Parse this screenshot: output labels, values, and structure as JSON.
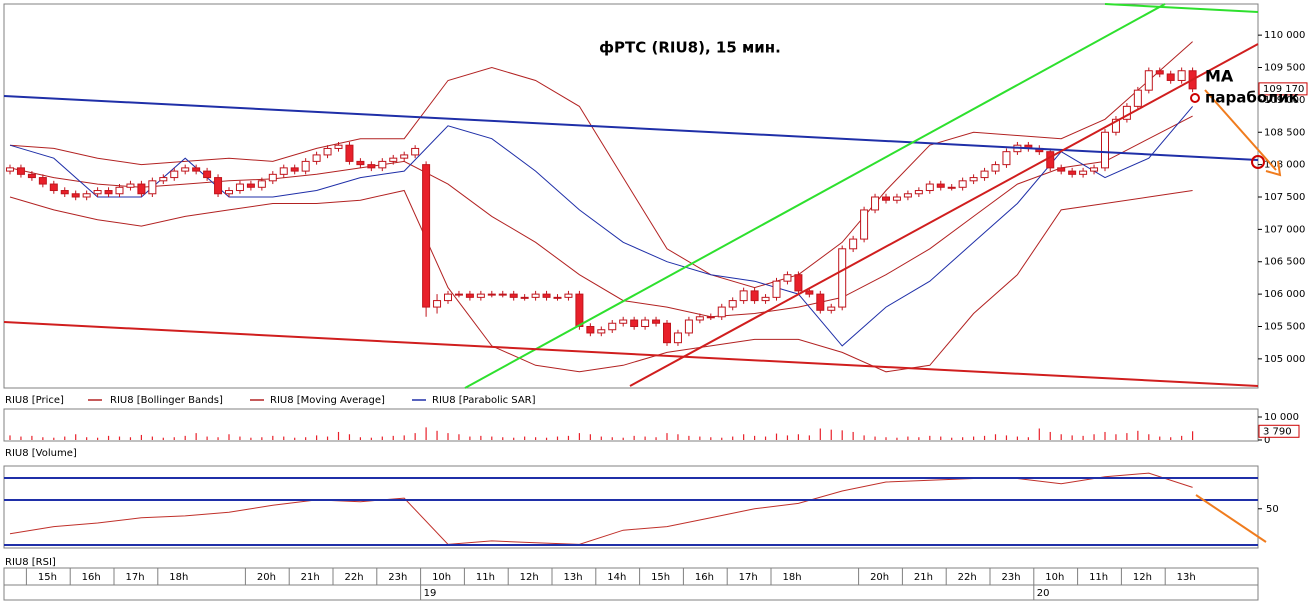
{
  "chart_data": {
    "type": "candlestick",
    "title": "фРТС (RIU8), 15 мин.",
    "price_name": "RIU8 [Price]",
    "categories": [
      null,
      null,
      "15h",
      null,
      null,
      null,
      "16h",
      null,
      null,
      null,
      "17h",
      null,
      null,
      null,
      "18h",
      null,
      null,
      null,
      null,
      null,
      null,
      null,
      "20h",
      null,
      null,
      null,
      "21h",
      null,
      null,
      null,
      "22h",
      null,
      null,
      null,
      "23h",
      null,
      null,
      null,
      "10h",
      null,
      null,
      null,
      "11h",
      null,
      null,
      null,
      "12h",
      null,
      null,
      null,
      "13h",
      null,
      null,
      null,
      "14h",
      null,
      null,
      null,
      "15h",
      null,
      null,
      null,
      "16h",
      null,
      null,
      null,
      "17h",
      null,
      null,
      null,
      "18h",
      null,
      null,
      null,
      null,
      null,
      null,
      null,
      "20h",
      null,
      null,
      null,
      "21h",
      null,
      null,
      null,
      "22h",
      null,
      null,
      null,
      "23h",
      null,
      null,
      null,
      "10h",
      null,
      null,
      null,
      "11h",
      null,
      null,
      null,
      "12h",
      null,
      null,
      null,
      "13h",
      null,
      null
    ],
    "day_ticks": [
      {
        "value": 38,
        "label": "19"
      },
      {
        "value": 94,
        "label": "20"
      }
    ],
    "candles": [
      [
        107900,
        108000,
        107850,
        107950
      ],
      [
        107950,
        108000,
        107800,
        107850
      ],
      [
        107850,
        107900,
        107750,
        107800
      ],
      [
        107800,
        107850,
        107650,
        107700
      ],
      [
        107700,
        107750,
        107550,
        107600
      ],
      [
        107600,
        107650,
        107500,
        107550
      ],
      [
        107550,
        107600,
        107450,
        107500
      ],
      [
        107500,
        107600,
        107450,
        107550
      ],
      [
        107550,
        107650,
        107500,
        107600
      ],
      [
        107600,
        107650,
        107500,
        107550
      ],
      [
        107550,
        107700,
        107500,
        107650
      ],
      [
        107650,
        107750,
        107600,
        107700
      ],
      [
        107700,
        107750,
        107500,
        107550
      ],
      [
        107550,
        107800,
        107500,
        107750
      ],
      [
        107750,
        107850,
        107700,
        107800
      ],
      [
        107800,
        107950,
        107750,
        107900
      ],
      [
        107900,
        108000,
        107850,
        107950
      ],
      [
        107950,
        108000,
        107850,
        107900
      ],
      [
        107900,
        107950,
        107750,
        107800
      ],
      [
        107800,
        107850,
        107500,
        107550
      ],
      [
        107550,
        107650,
        107500,
        107600
      ],
      [
        107600,
        107750,
        107550,
        107700
      ],
      [
        107700,
        107750,
        107600,
        107650
      ],
      [
        107650,
        107800,
        107600,
        107750
      ],
      [
        107750,
        107900,
        107700,
        107850
      ],
      [
        107850,
        108000,
        107800,
        107950
      ],
      [
        107950,
        108000,
        107850,
        107900
      ],
      [
        107900,
        108100,
        107850,
        108050
      ],
      [
        108050,
        108200,
        108000,
        108150
      ],
      [
        108150,
        108300,
        108100,
        108250
      ],
      [
        108250,
        108350,
        108200,
        108300
      ],
      [
        108300,
        108350,
        108000,
        108050
      ],
      [
        108050,
        108100,
        107950,
        108000
      ],
      [
        108000,
        108050,
        107900,
        107950
      ],
      [
        107950,
        108100,
        107900,
        108050
      ],
      [
        108050,
        108150,
        108000,
        108100
      ],
      [
        108100,
        108200,
        108050,
        108150
      ],
      [
        108150,
        108300,
        108100,
        108250
      ],
      [
        108000,
        108050,
        105650,
        105800
      ],
      [
        105800,
        106000,
        105700,
        105900
      ],
      [
        105900,
        106050,
        105850,
        106000
      ],
      [
        106000,
        106050,
        105950,
        106000
      ],
      [
        106000,
        106050,
        105900,
        105950
      ],
      [
        105950,
        106050,
        105900,
        106000
      ],
      [
        106000,
        106050,
        105950,
        106000
      ],
      [
        106000,
        106050,
        105950,
        106000
      ],
      [
        106000,
        106050,
        105900,
        105950
      ],
      [
        105950,
        106000,
        105900,
        105950
      ],
      [
        105950,
        106050,
        105900,
        106000
      ],
      [
        106000,
        106050,
        105900,
        105950
      ],
      [
        105950,
        106000,
        105900,
        105950
      ],
      [
        105950,
        106050,
        105900,
        106000
      ],
      [
        106000,
        106050,
        105450,
        105500
      ],
      [
        105500,
        105550,
        105350,
        105400
      ],
      [
        105400,
        105500,
        105350,
        105450
      ],
      [
        105450,
        105600,
        105400,
        105550
      ],
      [
        105550,
        105650,
        105500,
        105600
      ],
      [
        105600,
        105650,
        105450,
        105500
      ],
      [
        105500,
        105650,
        105450,
        105600
      ],
      [
        105600,
        105650,
        105500,
        105550
      ],
      [
        105550,
        105600,
        105200,
        105250
      ],
      [
        105250,
        105450,
        105200,
        105400
      ],
      [
        105400,
        105650,
        105350,
        105600
      ],
      [
        105600,
        105700,
        105550,
        105650
      ],
      [
        105650,
        105700,
        105600,
        105650
      ],
      [
        105650,
        105850,
        105600,
        105800
      ],
      [
        105800,
        105950,
        105750,
        105900
      ],
      [
        105900,
        106100,
        105850,
        106050
      ],
      [
        106050,
        106100,
        105850,
        105900
      ],
      [
        105900,
        106000,
        105850,
        105950
      ],
      [
        105950,
        106250,
        105900,
        106200
      ],
      [
        106200,
        106350,
        106150,
        106300
      ],
      [
        106300,
        106350,
        106000,
        106050
      ],
      [
        106050,
        106100,
        105950,
        106000
      ],
      [
        106000,
        106050,
        105700,
        105750
      ],
      [
        105750,
        105850,
        105700,
        105800
      ],
      [
        105800,
        106750,
        105750,
        106700
      ],
      [
        106700,
        106900,
        106650,
        106850
      ],
      [
        106850,
        107350,
        106800,
        107300
      ],
      [
        107300,
        107550,
        107250,
        107500
      ],
      [
        107500,
        107550,
        107400,
        107450
      ],
      [
        107450,
        107550,
        107400,
        107500
      ],
      [
        107500,
        107600,
        107450,
        107550
      ],
      [
        107550,
        107650,
        107500,
        107600
      ],
      [
        107600,
        107750,
        107550,
        107700
      ],
      [
        107700,
        107750,
        107600,
        107650
      ],
      [
        107650,
        107700,
        107600,
        107650
      ],
      [
        107650,
        107800,
        107600,
        107750
      ],
      [
        107750,
        107850,
        107700,
        107800
      ],
      [
        107800,
        107950,
        107750,
        107900
      ],
      [
        107900,
        108050,
        107850,
        108000
      ],
      [
        108000,
        108250,
        107950,
        108200
      ],
      [
        108200,
        108350,
        108150,
        108300
      ],
      [
        108300,
        108350,
        108200,
        108250
      ],
      [
        108250,
        108300,
        108150,
        108200
      ],
      [
        108200,
        108250,
        107900,
        107950
      ],
      [
        107950,
        108000,
        107850,
        107900
      ],
      [
        107900,
        107950,
        107800,
        107850
      ],
      [
        107850,
        107950,
        107800,
        107900
      ],
      [
        107900,
        108000,
        107850,
        107950
      ],
      [
        107950,
        108550,
        107900,
        108500
      ],
      [
        108500,
        108750,
        108450,
        108700
      ],
      [
        108700,
        108950,
        108650,
        108900
      ],
      [
        108900,
        109200,
        108850,
        109150
      ],
      [
        109150,
        109500,
        109100,
        109450
      ],
      [
        109450,
        109500,
        109350,
        109400
      ],
      [
        109400,
        109450,
        109250,
        109300
      ],
      [
        109300,
        109500,
        109250,
        109450
      ],
      [
        109450,
        109500,
        109120,
        109170
      ]
    ],
    "up_color": "#ffffff",
    "down_color": "#e8202a",
    "edge_color": "#c0141c",
    "ylim": [
      104550,
      110450
    ],
    "yticks": [
      {
        "value": 105000,
        "label": "105 000"
      },
      {
        "value": 105500,
        "label": "105 500"
      },
      {
        "value": 106000,
        "label": "106 000"
      },
      {
        "value": 106500,
        "label": "106 500"
      },
      {
        "value": 107000,
        "label": "107 000"
      },
      {
        "value": 107500,
        "label": "107 500"
      },
      {
        "value": 108000,
        "label": "108 000"
      },
      {
        "value": 108500,
        "label": "108 500"
      },
      {
        "value": 109000,
        "label": "109 000"
      },
      {
        "value": 109500,
        "label": "109 500"
      },
      {
        "value": 110000,
        "label": "110 000"
      }
    ],
    "last_price": {
      "value": 109170,
      "label": "109 170"
    },
    "indicators": [
      {
        "name": "RIU8 [Bollinger Bands]",
        "color": "#b22222",
        "x": [
          0,
          4,
          8,
          12,
          16,
          20,
          24,
          28,
          32,
          36,
          40,
          44,
          48,
          52,
          56,
          60,
          64,
          68,
          72,
          76,
          80,
          84,
          88,
          92,
          96,
          100,
          104,
          108
        ],
        "upper": [
          108300,
          108250,
          108100,
          108000,
          108050,
          108100,
          108050,
          108250,
          108400,
          108400,
          109300,
          109500,
          109300,
          108900,
          107800,
          106700,
          106300,
          106100,
          106300,
          106800,
          107600,
          108300,
          108500,
          108450,
          108400,
          108700,
          109300,
          109900
        ],
        "lower": [
          107500,
          107300,
          107150,
          107050,
          107200,
          107300,
          107400,
          107400,
          107450,
          107600,
          106100,
          105200,
          104900,
          104800,
          104900,
          105100,
          105200,
          105300,
          105300,
          105100,
          104800,
          104900,
          105700,
          106300,
          107300,
          107400,
          107500,
          107600
        ]
      },
      {
        "name": "RIU8 [Moving Average]",
        "color": "#b22222",
        "x": [
          0,
          4,
          8,
          12,
          16,
          20,
          24,
          28,
          32,
          36,
          40,
          44,
          48,
          52,
          56,
          60,
          64,
          68,
          72,
          76,
          80,
          84,
          88,
          92,
          96,
          100,
          104,
          108
        ],
        "values": [
          107950,
          107800,
          107700,
          107650,
          107700,
          107750,
          107780,
          107850,
          107950,
          108050,
          107700,
          107200,
          106800,
          106300,
          105900,
          105800,
          105650,
          105700,
          105800,
          105950,
          106300,
          106700,
          107200,
          107700,
          107950,
          108050,
          108400,
          108750
        ]
      },
      {
        "name": "RIU8 [Parabolic SAR]",
        "color": "#1f2fa8",
        "x": [
          0,
          4,
          8,
          12,
          16,
          20,
          24,
          28,
          32,
          36,
          40,
          44,
          48,
          52,
          56,
          60,
          64,
          68,
          72,
          76,
          80,
          84,
          88,
          92,
          96,
          100,
          104,
          108
        ],
        "values": [
          108300,
          108100,
          107500,
          107500,
          108100,
          107500,
          107500,
          107600,
          107800,
          107900,
          108600,
          108400,
          107900,
          107300,
          106800,
          106500,
          106300,
          106200,
          106000,
          105200,
          105800,
          106200,
          106800,
          107400,
          108200,
          107800,
          108100,
          108900
        ]
      }
    ],
    "volume": {
      "name": "RIU8 [Volume]",
      "color": "#e8202a",
      "values": [
        2000,
        1500,
        1800,
        1200,
        1000,
        1500,
        2500,
        1200,
        1000,
        1800,
        1500,
        1200,
        2200,
        1500,
        1000,
        1200,
        1800,
        3000,
        1500,
        1200,
        2500,
        1500,
        1000,
        1200,
        1800,
        1500,
        1000,
        1200,
        2000,
        1500,
        3500,
        2500,
        1200,
        1000,
        1500,
        1800,
        2000,
        3000,
        5500,
        4000,
        3000,
        2500,
        1500,
        1800,
        1500,
        1200,
        1000,
        1500,
        1200,
        1000,
        1500,
        1800,
        3000,
        2500,
        1500,
        1200,
        1000,
        1800,
        1500,
        1200,
        3000,
        2500,
        1800,
        1500,
        1200,
        1000,
        1500,
        2500,
        1800,
        1500,
        2800,
        2000,
        2500,
        2000,
        5000,
        4500,
        4200,
        3500,
        2000,
        1500,
        1200,
        1000,
        1500,
        1200,
        1800,
        1500,
        1000,
        1200,
        1500,
        1800,
        2500,
        2000,
        1500,
        1200,
        5000,
        3500,
        2500,
        2000,
        1800,
        2500,
        3500,
        2500,
        3000,
        4000,
        2500,
        1500,
        1200,
        1800,
        3790
      ],
      "ylim": [
        0,
        10000
      ],
      "yticks": [
        {
          "value": 10000,
          "label": "10 000"
        },
        0
      ],
      "last": {
        "value": 3790,
        "label": "3 790"
      }
    },
    "rsi": {
      "name": "RIU8 [RSI]",
      "color": "#c0302a",
      "x": [
        0,
        4,
        8,
        12,
        16,
        20,
        24,
        28,
        32,
        36,
        40,
        44,
        48,
        52,
        56,
        60,
        64,
        68,
        72,
        76,
        80,
        84,
        88,
        92,
        96,
        100,
        104,
        108
      ],
      "values": [
        36,
        40,
        42,
        45,
        46,
        48,
        52,
        55,
        54,
        56,
        30,
        32,
        31,
        30,
        38,
        40,
        45,
        50,
        53,
        60,
        65,
        66,
        67,
        67,
        64,
        68,
        70,
        62
      ],
      "ylim": [
        28,
        74
      ],
      "yticks": [
        50
      ]
    },
    "annotations": [
      "MA",
      "параболик"
    ]
  }
}
